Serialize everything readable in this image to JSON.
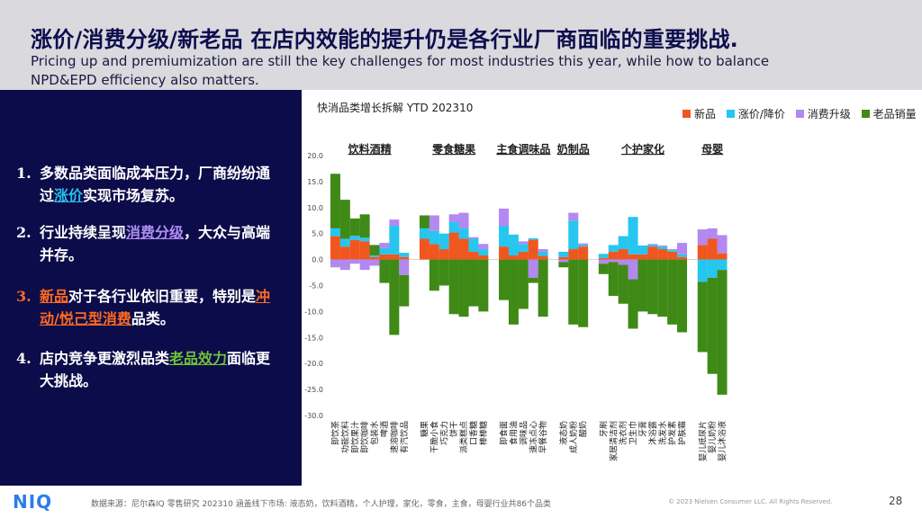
{
  "header": {
    "title": "涨价/消费分级/新老品 在店内效能的提升仍是各行业厂商面临的重要挑战.",
    "subtitle_line1": "Pricing up and premiumization are still the key challenges for most industries this year, while how to balance",
    "subtitle_line2": "NPD&EPD efficiency also matters."
  },
  "points": [
    {
      "num": "1.",
      "pre": "多数品类面临成本压力，厂商纷纷通过",
      "hl": "涨价",
      "post": "实现市场复苏。"
    },
    {
      "num": "2.",
      "pre": "行业持续呈现",
      "hl": "消费分级",
      "post": "，大众与高端并存。"
    },
    {
      "num": "3.",
      "hl1": "新品",
      "mid": "对于各行业依旧重要，特别是",
      "hl2": "冲动/悦己型消费",
      "post": "品类。"
    },
    {
      "num": "4.",
      "pre": "店内竞争更激烈品类",
      "hl": "老品效力",
      "post": "面临更大挑战。"
    }
  ],
  "colors": {
    "new": "#f0571f",
    "price": "#26c6f0",
    "premium": "#b388f0",
    "old": "#3f8a17",
    "sidebar": "#0c0c4a",
    "header_band": "#d9d9de"
  },
  "chart_data": {
    "type": "bar",
    "stacked": true,
    "title": "快消品类增长拆解 YTD 202310",
    "ylim": [
      -30,
      20
    ],
    "yticks": [
      20,
      15,
      10,
      5,
      0,
      -5,
      -10,
      -15,
      -20,
      -25,
      -30
    ],
    "legend": [
      {
        "key": "new",
        "label": "新品"
      },
      {
        "key": "price",
        "label": "涨价/降价"
      },
      {
        "key": "premium",
        "label": "消费升级"
      },
      {
        "key": "old",
        "label": "老品销量"
      }
    ],
    "legend_position": "top-right",
    "groups": [
      {
        "label": "饮料酒精",
        "categories": [
          {
            "name": "即饮茶",
            "new": 4.5,
            "price": 1.5,
            "premium": -1.5,
            "old": 10.5
          },
          {
            "name": "功能饮料",
            "new": 2.5,
            "price": 1.5,
            "premium": -2.0,
            "old": 7.5
          },
          {
            "name": "即饮果汁",
            "new": 3.8,
            "price": 0.8,
            "premium": -0.8,
            "old": 3.3
          },
          {
            "name": "即饮咖啡",
            "new": 3.5,
            "price": 0.7,
            "premium": -2.0,
            "old": 4.5
          },
          {
            "name": "包装水",
            "new": 0.5,
            "price": 0.3,
            "premium": -1.2,
            "old": 2.0
          },
          {
            "name": "啤酒",
            "new": 1.0,
            "price": 1.2,
            "premium": 1.0,
            "old": -4.5
          },
          {
            "name": "速溶咖啡",
            "new": 1.0,
            "price": 5.5,
            "premium": 1.2,
            "old": -14.5
          },
          {
            "name": "有汽饮品",
            "new": 0.5,
            "price": 0.8,
            "premium": -3.0,
            "old": -6.0
          }
        ]
      },
      {
        "label": "零食糖果",
        "categories": [
          {
            "name": "糖果",
            "new": 4.0,
            "price": 2.0,
            "premium": 0,
            "old": 2.5
          },
          {
            "name": "干脆小食",
            "new": 3.0,
            "price": 2.5,
            "premium": 3.0,
            "old": -6.0
          },
          {
            "name": "巧克力",
            "new": 2.0,
            "price": 3.0,
            "premium": 0,
            "old": -5.0
          },
          {
            "name": "饼干",
            "new": 5.2,
            "price": 2.0,
            "premium": 1.5,
            "old": -10.5
          },
          {
            "name": "派类糕点",
            "new": 4.0,
            "price": 2.0,
            "premium": 3.0,
            "old": -11.0
          },
          {
            "name": "口香糖",
            "new": 1.5,
            "price": 2.5,
            "premium": 0.3,
            "old": -9.0
          },
          {
            "name": "棒棒糖",
            "new": 0.8,
            "price": 1.2,
            "premium": 1.0,
            "old": -10.0
          }
        ]
      },
      {
        "label": "主食调味品",
        "categories": [
          {
            "name": "即食面",
            "new": 2.5,
            "price": 4.0,
            "premium": 3.3,
            "old": -7.8
          },
          {
            "name": "食用油",
            "new": 0.8,
            "price": 4.0,
            "premium": 0,
            "old": -12.5
          },
          {
            "name": "调味品",
            "new": 1.5,
            "price": 1.5,
            "premium": 0.5,
            "old": -9.5
          },
          {
            "name": "速冻点心",
            "new": 3.8,
            "price": 0.3,
            "premium": -3.5,
            "old": -1.0
          },
          {
            "name": "早餐谷物",
            "new": 0.7,
            "price": 0.8,
            "premium": 0.5,
            "old": -11.0
          }
        ]
      },
      {
        "label": "奶制品",
        "categories": [
          {
            "name": "液态奶",
            "new": 0.5,
            "price": 1.0,
            "premium": -0.5,
            "old": -1.0
          },
          {
            "name": "成人奶粉",
            "new": 2.0,
            "price": 5.5,
            "premium": 1.5,
            "old": -12.5
          },
          {
            "name": "酸奶",
            "new": 2.5,
            "price": 0.3,
            "premium": 0.3,
            "old": -13.0
          }
        ]
      },
      {
        "label": "个护家化",
        "categories": [
          {
            "name": "牙刷",
            "new": 0.3,
            "price": 0.8,
            "premium": -0.8,
            "old": -2.0
          },
          {
            "name": "家居清洁剂",
            "new": 1.5,
            "price": 1.3,
            "premium": -0.5,
            "old": -6.5
          },
          {
            "name": "洗衣剂",
            "new": 2.0,
            "price": 2.5,
            "premium": -1.0,
            "old": -7.5
          },
          {
            "name": "卫生巾",
            "new": 1.0,
            "price": 7.2,
            "premium": -3.8,
            "old": -9.5
          },
          {
            "name": "牙膏",
            "new": 1.0,
            "price": 1.7,
            "premium": 0,
            "old": -10.0
          },
          {
            "name": "沐浴露",
            "new": 2.5,
            "price": 0.3,
            "premium": 0.2,
            "old": -10.5
          },
          {
            "name": "洗发水",
            "new": 2.0,
            "price": 0.5,
            "premium": 0.2,
            "old": -11.0
          },
          {
            "name": "护发素",
            "new": 1.5,
            "price": 0.3,
            "premium": 0.2,
            "old": -12.5
          },
          {
            "name": "护肤霜",
            "new": 0.5,
            "price": 0.5,
            "premium": 2.2,
            "old": -14.0
          }
        ]
      },
      {
        "label": "母婴",
        "categories": [
          {
            "name": "婴儿纸尿片",
            "new": 2.8,
            "price": -4.3,
            "premium": 3.0,
            "old": -13.5
          },
          {
            "name": "婴儿奶粉",
            "new": 4.0,
            "price": -3.5,
            "premium": 2.0,
            "old": -18.5
          },
          {
            "name": "婴儿沐浴液",
            "new": 1.2,
            "price": -2.0,
            "premium": 3.5,
            "old": -24.0
          }
        ]
      }
    ]
  },
  "footer": {
    "logo": "NIQ",
    "source": "数据来源：尼尔森IQ 零售研究 202310 涵盖线下市场: 液态奶，饮料酒精，个人护理，家化，零食，主食，母婴行业共86个品类",
    "copyright": "© 2023 Nielsen Consumer LLC. All Rights Reserved.",
    "page": "28"
  }
}
